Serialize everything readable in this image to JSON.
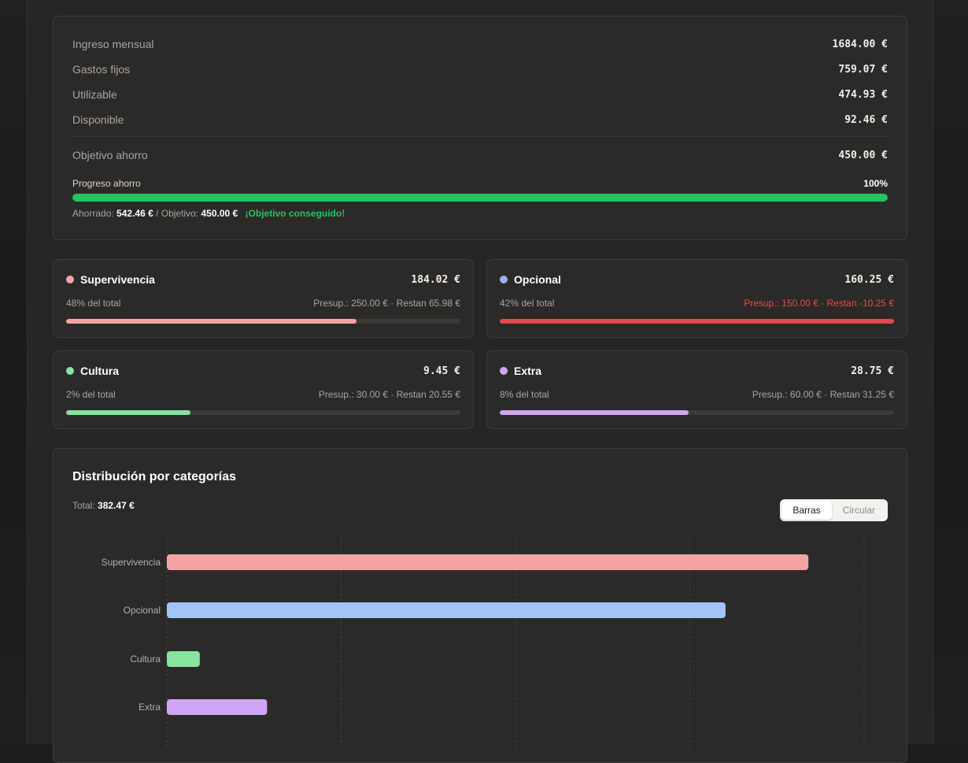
{
  "summary": {
    "ingreso_label": "Ingreso mensual",
    "ingreso_value": "1684.00 €",
    "gastos_label": "Gastos fijos",
    "gastos_value": "759.07 €",
    "utilizable_label": "Utilizable",
    "utilizable_value": "474.93 €",
    "disponible_label": "Disponible",
    "disponible_value": "92.46 €",
    "objetivo_label": "Objetivo ahorro",
    "objetivo_value": "450.00 €",
    "progreso_label": "Progreso ahorro",
    "progreso_value": "100%",
    "progreso_fraction": 1.0,
    "ahorrado_label": "Ahorrado:",
    "ahorrado_value": "542.46 €",
    "objetivo_short_label": "/ Objetivo:",
    "objetivo_short_value": "450.00 €",
    "status": "¡Objetivo conseguido!",
    "progress_color": "#22c55e"
  },
  "categories": [
    {
      "name": "Supervivencia",
      "amount": "184.02 €",
      "share": "48% del total",
      "budget": "Presup.: 250.00 € · Restan 65.98 €",
      "fill": 0.736,
      "color": "#f4a3a3",
      "over": false
    },
    {
      "name": "Opcional",
      "amount": "160.25 €",
      "share": "42% del total",
      "budget": "Presup.: 150.00 € · Restan -10.25 €",
      "fill": 1.0,
      "color": "#93b4f0",
      "over": true,
      "over_color": "#e5484d"
    },
    {
      "name": "Cultura",
      "amount": "9.45 €",
      "share": "2% del total",
      "budget": "Presup.: 30.00 € · Restan 20.55 €",
      "fill": 0.315,
      "color": "#86e3a0",
      "over": false
    },
    {
      "name": "Extra",
      "amount": "28.75 €",
      "share": "8% del total",
      "budget": "Presup.: 60.00 € · Restan 31.25 €",
      "fill": 0.479,
      "color": "#cfa6f5",
      "over": false
    }
  ],
  "distribution": {
    "title": "Distribución por categorías",
    "total_label": "Total:",
    "total_value": "382.47 €",
    "toggle": {
      "bars": "Barras",
      "pie": "Circular",
      "active": "Barras"
    }
  },
  "chart_data": {
    "type": "bar",
    "orientation": "horizontal",
    "categories": [
      "Supervivencia",
      "Opcional",
      "Cultura",
      "Extra"
    ],
    "values": [
      184.02,
      160.25,
      9.45,
      28.75
    ],
    "colors": [
      "#f4a3a3",
      "#a3c4f7",
      "#86e3a0",
      "#cfa6f5"
    ],
    "xlim": [
      0,
      200
    ],
    "grid": true,
    "xlabel": "",
    "ylabel": ""
  }
}
